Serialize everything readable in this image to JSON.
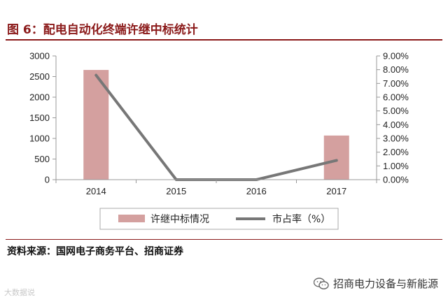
{
  "figure": {
    "title": "图 6：配电自动化终端许继中标统计",
    "source": "资料来源：国网电子商务平台、招商证券",
    "watermark_left": "大数据说",
    "wechat_account": "招商电力设备与新能源",
    "wechat_icon": "wechat-icon"
  },
  "colors": {
    "bar": "#d4a09f",
    "line": "#777777",
    "accent": "#8b1a1a"
  },
  "chart_data": {
    "type": "bar",
    "categories": [
      "2014",
      "2015",
      "2016",
      "2017"
    ],
    "series": [
      {
        "name": "许继中标情况",
        "type": "bar",
        "axis": "left",
        "values": [
          2660,
          0,
          0,
          1070
        ]
      },
      {
        "name": "市占率（%）",
        "type": "line",
        "axis": "right",
        "values": [
          7.6,
          0.0,
          0.0,
          1.4
        ]
      }
    ],
    "y_left": {
      "min": 0,
      "max": 3000,
      "ticks": [
        "0",
        "500",
        "1000",
        "1500",
        "2000",
        "2500",
        "3000"
      ],
      "tick_values": [
        0,
        500,
        1000,
        1500,
        2000,
        2500,
        3000
      ]
    },
    "y_right": {
      "min": 0,
      "max": 9,
      "ticks": [
        "0.00%",
        "1.00%",
        "2.00%",
        "3.00%",
        "4.00%",
        "5.00%",
        "6.00%",
        "7.00%",
        "8.00%",
        "9.00%"
      ],
      "tick_values": [
        0,
        1,
        2,
        3,
        4,
        5,
        6,
        7,
        8,
        9
      ]
    },
    "grid": false,
    "legend": {
      "position": "bottom",
      "boxed": true
    },
    "title": "",
    "xlabel": "",
    "ylabel": ""
  }
}
